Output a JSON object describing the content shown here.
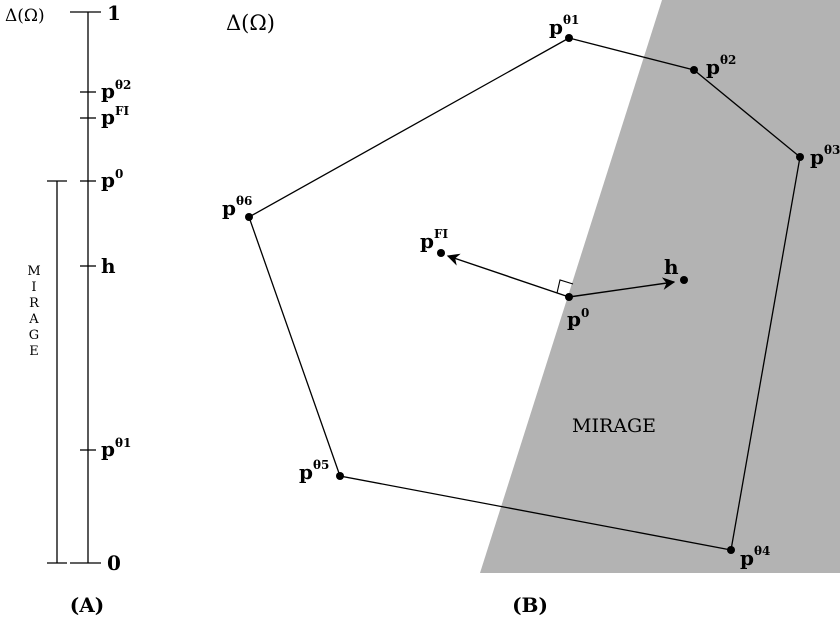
{
  "panel_a": {
    "title": "Δ(Ω)",
    "top_value": "1",
    "bottom_value": "0",
    "mirage_label": [
      "M",
      "I",
      "R",
      "A",
      "G",
      "E"
    ],
    "ticks": [
      {
        "base": "p",
        "sup": "θ2"
      },
      {
        "base": "p",
        "sup": "FI"
      },
      {
        "base": "p",
        "sup": "0"
      },
      {
        "base": "h",
        "sup": ""
      },
      {
        "base": "p",
        "sup": "θ1"
      }
    ],
    "caption": "(A)"
  },
  "panel_b": {
    "title": "Δ(Ω)",
    "region_label": "MIRAGE",
    "caption": "(B)",
    "vertices": [
      {
        "base": "p",
        "sup": "θ1"
      },
      {
        "base": "p",
        "sup": "θ2"
      },
      {
        "base": "p",
        "sup": "θ3"
      },
      {
        "base": "p",
        "sup": "θ4"
      },
      {
        "base": "p",
        "sup": "θ5"
      },
      {
        "base": "p",
        "sup": "θ6"
      }
    ],
    "points": [
      {
        "base": "p",
        "sup": "FI"
      },
      {
        "base": "h",
        "sup": ""
      },
      {
        "base": "p",
        "sup": "0"
      }
    ]
  }
}
